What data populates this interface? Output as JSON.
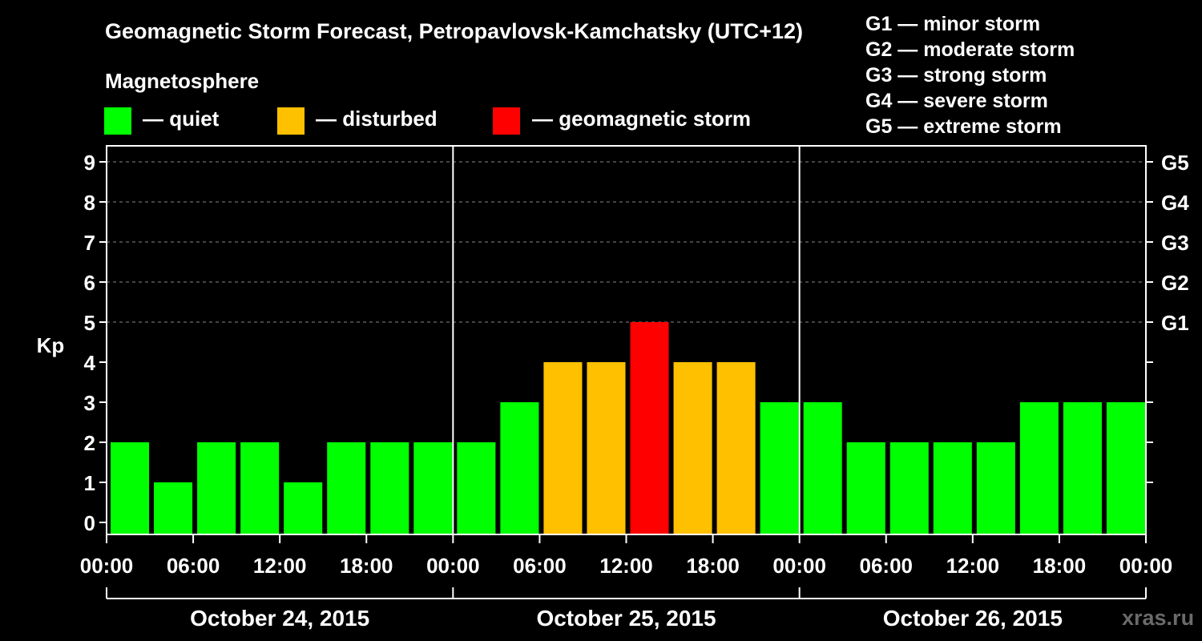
{
  "colors": {
    "quiet": "#00ff00",
    "disturbed": "#ffc000",
    "storm": "#ff0000",
    "background": "#000000",
    "axis": "#ffffff",
    "watermark": "#6a6a6a"
  },
  "legend": {
    "title": "Magnetosphere",
    "items": [
      {
        "color": "#00ff00",
        "label": "— quiet"
      },
      {
        "color": "#ffc000",
        "label": "— disturbed"
      },
      {
        "color": "#ff0000",
        "label": "— geomagnetic storm"
      }
    ]
  },
  "storm_levels": [
    "G1 — minor storm",
    "G2 — moderate storm",
    "G3 — strong storm",
    "G4 — severe storm",
    "G5 — extreme storm"
  ],
  "watermark": "xras.ru",
  "chart_data": {
    "type": "bar",
    "title": "Geomagnetic Storm Forecast, Petropavlovsk-Kamchatsky (UTC+12)",
    "ylabel": "Kp",
    "ylim": [
      0,
      9
    ],
    "yticks": [
      "0",
      "1",
      "2",
      "3",
      "4",
      "5",
      "6",
      "7",
      "8",
      "9"
    ],
    "right_ticks": [
      {
        "kp": 5,
        "label": "G1"
      },
      {
        "kp": 6,
        "label": "G2"
      },
      {
        "kp": 7,
        "label": "G3"
      },
      {
        "kp": 8,
        "label": "G4"
      },
      {
        "kp": 9,
        "label": "G5"
      }
    ],
    "grid": "dashed horizontal at Kp 5-9",
    "xticks": [
      "00:00",
      "06:00",
      "12:00",
      "18:00",
      "00:00",
      "06:00",
      "12:00",
      "18:00",
      "00:00",
      "06:00",
      "12:00",
      "18:00",
      "00:00"
    ],
    "dates": [
      "October 24, 2015",
      "October 25, 2015",
      "October 26, 2015"
    ],
    "interval_hours": 3,
    "values": [
      2,
      1,
      2,
      2,
      1,
      2,
      2,
      2,
      2,
      3,
      4,
      4,
      5,
      4,
      4,
      3,
      3,
      2,
      2,
      2,
      2,
      3,
      3,
      3
    ],
    "categories": [
      "quiet",
      "quiet",
      "quiet",
      "quiet",
      "quiet",
      "quiet",
      "quiet",
      "quiet",
      "quiet",
      "quiet",
      "disturbed",
      "disturbed",
      "storm",
      "disturbed",
      "disturbed",
      "quiet",
      "quiet",
      "quiet",
      "quiet",
      "quiet",
      "quiet",
      "quiet",
      "quiet",
      "quiet"
    ]
  }
}
